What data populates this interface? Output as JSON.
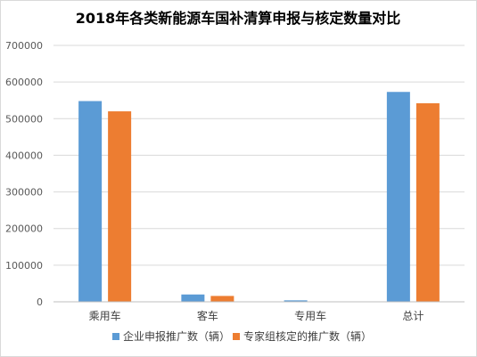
{
  "chart_data": {
    "type": "bar",
    "title": "2018年各类新能源车国补清算申报与核定数量对比",
    "categories": [
      "乘用车",
      "客车",
      "专用车",
      "总计"
    ],
    "series": [
      {
        "name": "企业申报推广数（辆）",
        "color": "#5B9BD5",
        "values": [
          548000,
          20000,
          4000,
          573000
        ]
      },
      {
        "name": "专家组核定的推广数（辆）",
        "color": "#ED7D31",
        "values": [
          520000,
          16000,
          1000,
          542000
        ]
      }
    ],
    "ylim": [
      0,
      700000
    ],
    "yticks": [
      0,
      100000,
      200000,
      300000,
      400000,
      500000,
      600000,
      700000
    ],
    "ytick_labels": [
      "0",
      "100000",
      "200000",
      "300000",
      "400000",
      "500000",
      "600000",
      "700000"
    ],
    "grid": true,
    "legend_position": "bottom"
  }
}
